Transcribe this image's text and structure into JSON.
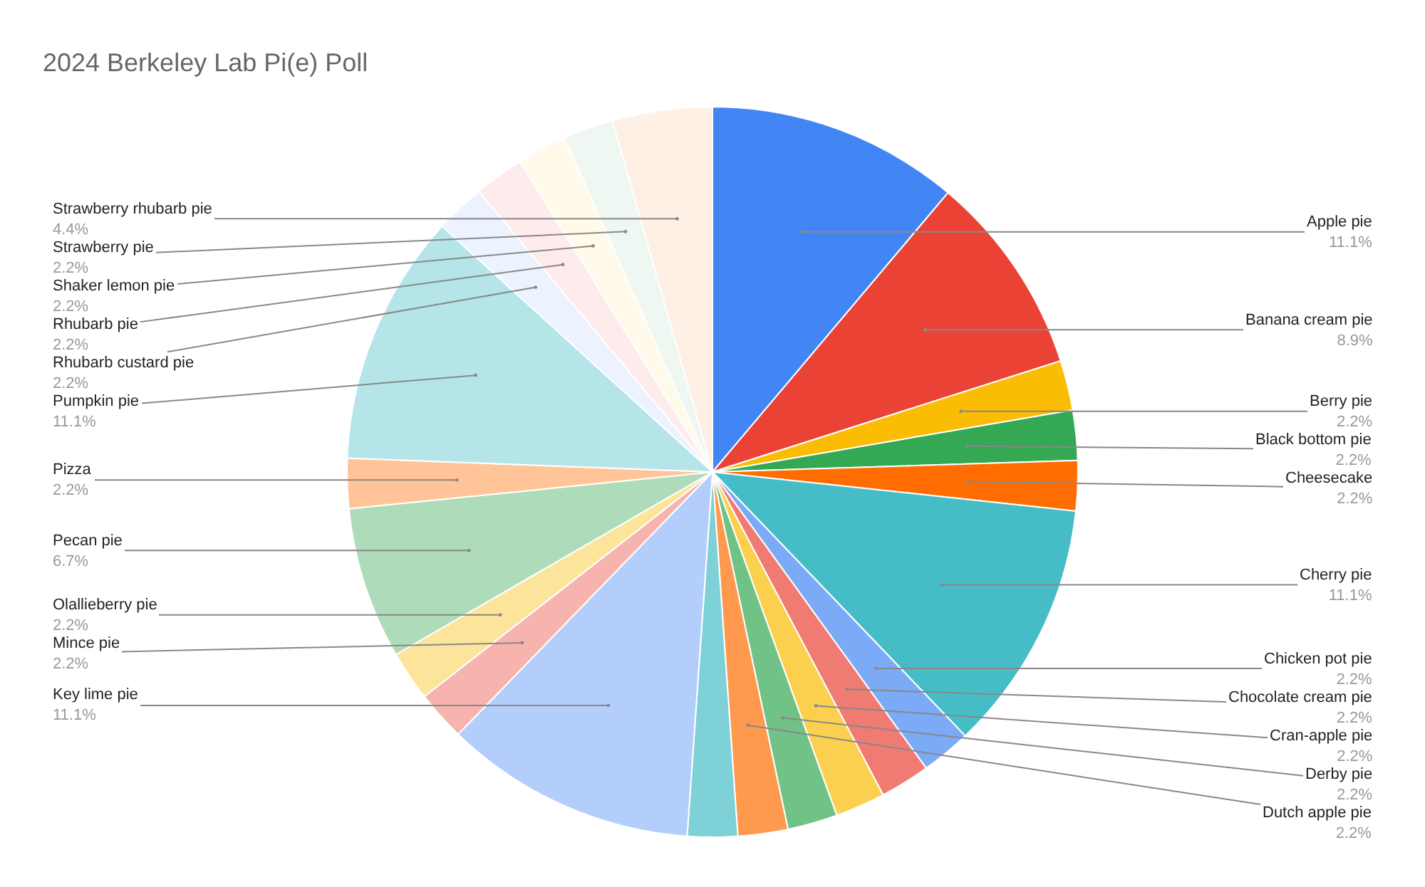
{
  "chart_data": {
    "type": "pie",
    "title": "2024 Berkeley Lab Pi(e) Poll",
    "categories": [
      "Apple pie",
      "Banana cream pie",
      "Berry pie",
      "Black bottom pie",
      "Cheesecake",
      "Cherry pie",
      "Chicken pot pie",
      "Chocolate cream pie",
      "Cran-apple pie",
      "Derby pie",
      "Dutch apple pie",
      null,
      "Key lime pie",
      "Mince pie",
      "Olallieberry pie",
      "Pecan pie",
      "Pizza",
      "Pumpkin pie",
      "Rhubarb custard pie",
      "Rhubarb pie",
      "Shaker lemon pie",
      "Strawberry pie",
      "Strawberry rhubarb pie"
    ],
    "values": [
      11.1,
      8.9,
      2.2,
      2.2,
      2.2,
      11.1,
      2.2,
      2.2,
      2.2,
      2.2,
      2.2,
      2.2,
      11.1,
      2.2,
      2.2,
      6.7,
      2.2,
      11.1,
      2.2,
      2.2,
      2.2,
      2.2,
      4.4
    ],
    "value_labels": [
      "11.1%",
      "8.9%",
      "2.2%",
      "2.2%",
      "2.2%",
      "11.1%",
      "2.2%",
      "2.2%",
      "2.2%",
      "2.2%",
      "2.2%",
      null,
      "11.1%",
      "2.2%",
      "2.2%",
      "6.7%",
      "2.2%",
      "11.1%",
      "2.2%",
      "2.2%",
      "2.2%",
      "2.2%",
      "4.4%"
    ],
    "colors": [
      "#4285f4",
      "#ea4335",
      "#fbbc04",
      "#34a853",
      "#ff6d01",
      "#46bdc6",
      "#7baaf7",
      "#f07b72",
      "#fcd04f",
      "#71c287",
      "#ff994d",
      "#7ed1d7",
      "#b3cefb",
      "#f7b4ae",
      "#fde49b",
      "#aedcba",
      "#ffc599",
      "#b5e5e8",
      "#ecf3fe",
      "#fdeceb",
      "#fffaea",
      "#eef7f1",
      "#fff0e6"
    ],
    "legend": false
  }
}
